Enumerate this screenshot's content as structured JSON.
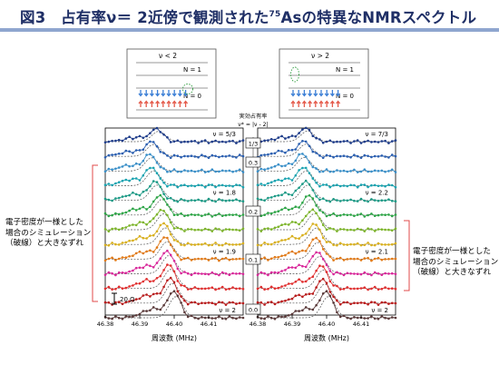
{
  "title": {
    "prefix": "図3　占有率ν＝ 2近傍で観測された",
    "sup": "75",
    "suffix": "Asの特異なNMRスペクトル"
  },
  "insets": [
    {
      "condition": "ν < 2",
      "n1": "N = 1",
      "n0": "N = 0"
    },
    {
      "condition": "ν > 2",
      "n1": "N = 1",
      "n0": "N = 0"
    }
  ],
  "effective_filling": {
    "line1": "実効占有率",
    "line2": "ν* = |ν - 2|"
  },
  "scale_bar_label": "20 Ω",
  "annotations": {
    "left": [
      "電子密度が一様とした",
      "場合のシミュレーション",
      "（破線）と大きなずれ"
    ],
    "right": [
      "電子密度が一様とした",
      "場合のシミュレーション",
      "（破線）と大きなずれ"
    ]
  },
  "colors": {
    "title": "#1f2f66",
    "title_rule": "#8fa6cf",
    "bracket": "#e04848",
    "spin_arrow_blue": "#3c7fd6",
    "spin_arrow_red": "#e45a4a",
    "electron_dot": "#2a9a3a",
    "series": [
      "#1f3d8a",
      "#2b5fb0",
      "#3a8fc8",
      "#1aa3b0",
      "#1d9a86",
      "#2fa548",
      "#7cb42a",
      "#d8b020",
      "#e07a18",
      "#d8289a",
      "#e03030",
      "#b81c1c",
      "#5a3a3a"
    ]
  },
  "chart_data": [
    {
      "type": "line",
      "panel": "ν < 2",
      "xlabel": "周波数 (MHz)",
      "xlim": [
        46.38,
        46.42
      ],
      "xticks": [
        46.38,
        46.39,
        46.4,
        46.41
      ],
      "tick_labels": [
        "46.38",
        "46.39",
        "46.40",
        "46.41"
      ],
      "series_labels": [
        {
          "name": "ν = 5/3",
          "series_index": 0
        },
        {
          "name": "ν = 1.8",
          "series_index": 4
        },
        {
          "name": "ν = 1.9",
          "series_index": 8
        },
        {
          "name": "ν = 2",
          "series_index": 12
        }
      ],
      "peaks": [
        46.395,
        46.3935,
        46.393,
        46.3935,
        46.3945,
        46.396,
        46.3965,
        46.397,
        46.3975,
        46.398,
        46.3985,
        46.399,
        46.4
      ],
      "heights": [
        0.35,
        0.55,
        0.75,
        0.95,
        1.0,
        1.05,
        1.1,
        1.2,
        1.3,
        1.4,
        1.5,
        1.6,
        1.8
      ]
    },
    {
      "type": "line",
      "panel": "ν > 2",
      "xlabel": "周波数 (MHz)",
      "xlim": [
        46.38,
        46.42
      ],
      "xticks": [
        46.38,
        46.39,
        46.4,
        46.41
      ],
      "tick_labels": [
        "46.38",
        "46.39",
        "46.40",
        "46.41"
      ],
      "series_labels": [
        {
          "name": "ν = 7/3",
          "series_index": 0
        },
        {
          "name": "ν = 2.2",
          "series_index": 4
        },
        {
          "name": "ν = 2.1",
          "series_index": 8
        },
        {
          "name": "ν = 2",
          "series_index": 12
        }
      ],
      "peaks": [
        46.394,
        46.3935,
        46.393,
        46.3935,
        46.394,
        46.395,
        46.396,
        46.3965,
        46.397,
        46.3975,
        46.3985,
        46.399,
        46.4
      ],
      "heights": [
        0.4,
        0.6,
        0.8,
        0.95,
        1.0,
        1.05,
        1.1,
        1.15,
        1.2,
        1.3,
        1.4,
        1.5,
        1.8
      ]
    }
  ],
  "effective_filling_scale": [
    "1/3",
    "0.3",
    "0.2",
    "0.1",
    "0.0"
  ]
}
